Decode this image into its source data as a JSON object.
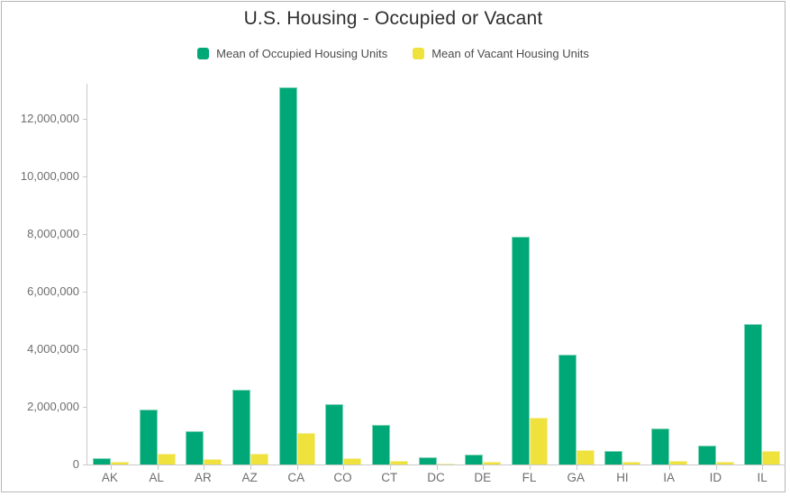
{
  "window": {
    "border_color": "#b7b7b7",
    "background": "#ffffff"
  },
  "header": {
    "title": "U.S. Housing - Occupied or Vacant",
    "title_color": "#2f2f2f"
  },
  "legend": {
    "position": "top",
    "items": [
      {
        "label": "Mean of Occupied Housing Units",
        "color": "#00a878"
      },
      {
        "label": "Mean of Vacant Housing Units",
        "color": "#efe23d"
      }
    ]
  },
  "axis_style": {
    "line_color": "#c9c9c9",
    "tick_label_color": "#6e6e6e"
  },
  "chart_data": {
    "type": "bar",
    "title": "U.S. Housing - Occupied or Vacant",
    "xlabel": "",
    "ylabel": "",
    "grid": false,
    "legend_position": "top",
    "categories": [
      "AK",
      "AL",
      "AR",
      "AZ",
      "CA",
      "CO",
      "CT",
      "DC",
      "DE",
      "FL",
      "GA",
      "HI",
      "IA",
      "ID",
      "IL"
    ],
    "series": [
      {
        "name": "Mean of Occupied Housing Units",
        "color": "#00a878",
        "stroke": "#7fd3b4",
        "values": [
          230000,
          1900000,
          1150000,
          2600000,
          13100000,
          2100000,
          1380000,
          250000,
          350000,
          7900000,
          3800000,
          470000,
          1250000,
          650000,
          4880000
        ]
      },
      {
        "name": "Mean of Vacant Housing Units",
        "color": "#efe23d",
        "stroke": "#f6efa0",
        "values": [
          100000,
          380000,
          200000,
          380000,
          1100000,
          220000,
          130000,
          40000,
          80000,
          1630000,
          500000,
          80000,
          130000,
          80000,
          460000
        ]
      }
    ],
    "ylim": [
      0,
      13220000
    ],
    "yticks": [
      0,
      2000000,
      4000000,
      6000000,
      8000000,
      10000000,
      12000000
    ],
    "ytick_labels": [
      "0",
      "2,000,000",
      "4,000,000",
      "6,000,000",
      "8,000,000",
      "10,000,000",
      "12,000,000"
    ]
  }
}
